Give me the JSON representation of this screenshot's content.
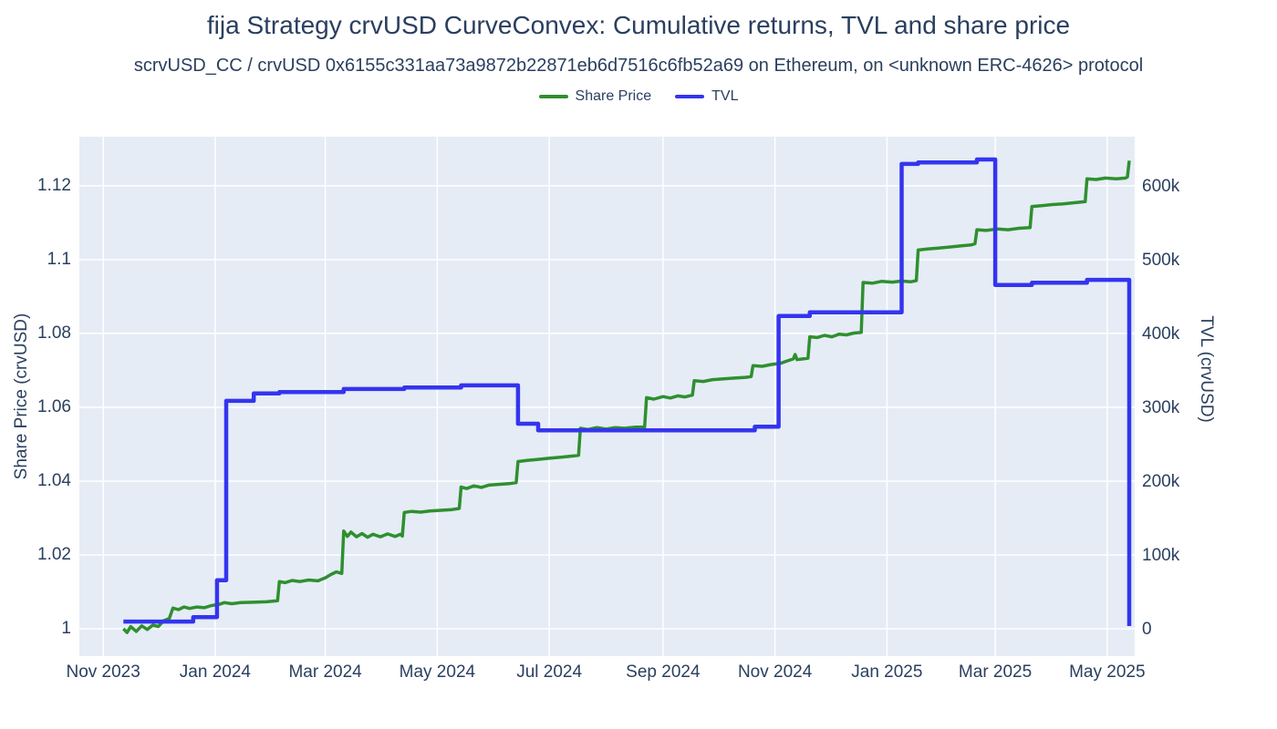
{
  "page": {
    "title": "fija Strategy crvUSD CurveConvex: Cumulative returns, TVL and share price",
    "subtitle": "scrvUSD_CC / crvUSD 0x6155c331aa73a9872b22871eb6d7516c6fb52a69 on Ethereum, on <unknown ERC-4626> protocol"
  },
  "colors": {
    "text": "#2a3f5f",
    "plot_background": "#e5ecf6",
    "gridline": "#ffffff",
    "share_price": "#2f8f2f",
    "tvl": "#3434ef"
  },
  "chart_data": {
    "type": "line",
    "title": "fija Strategy crvUSD CurveConvex: Cumulative returns, TVL and share price",
    "subtitle": "scrvUSD_CC / crvUSD 0x6155c331aa73a9872b22871eb6d7516c6fb52a69 on Ethereum, on <unknown ERC-4626> protocol",
    "grid": true,
    "legend_position": "top-center",
    "plot_bg": "#e5ecf6",
    "grid_color": "#ffffff",
    "x_axis": {
      "range": [
        "2023-10-19",
        "2025-05-16"
      ],
      "ticks": [
        {
          "label": "Nov 2023",
          "date": "2023-11-01"
        },
        {
          "label": "Jan 2024",
          "date": "2024-01-01"
        },
        {
          "label": "Mar 2024",
          "date": "2024-03-01"
        },
        {
          "label": "May 2024",
          "date": "2024-05-01"
        },
        {
          "label": "Jul 2024",
          "date": "2024-07-01"
        },
        {
          "label": "Sep 2024",
          "date": "2024-09-01"
        },
        {
          "label": "Nov 2024",
          "date": "2024-11-01"
        },
        {
          "label": "Jan 2025",
          "date": "2025-01-01"
        },
        {
          "label": "Mar 2025",
          "date": "2025-03-01"
        },
        {
          "label": "May 2025",
          "date": "2025-05-01"
        }
      ]
    },
    "y_left": {
      "title": "Share Price (crvUSD)",
      "range": [
        0.9926,
        1.1333
      ],
      "tick_values": [
        1,
        1.02,
        1.04,
        1.06,
        1.08,
        1.1,
        1.12
      ],
      "tick_labels": [
        "1",
        "1.02",
        "1.04",
        "1.06",
        "1.08",
        "1.1",
        "1.12"
      ]
    },
    "y_right": {
      "title": "TVL (crvUSD)",
      "range": [
        -35800,
        667900
      ],
      "tick_values": [
        0,
        100000,
        200000,
        300000,
        400000,
        500000,
        600000
      ],
      "tick_labels": [
        "0",
        "100k",
        "200k",
        "300k",
        "400k",
        "500k",
        "600k"
      ]
    },
    "series": [
      {
        "name": "Share Price",
        "color": "#2f8f2f",
        "axis": "left",
        "width": 3.5,
        "points": [
          [
            "2023-11-12",
            1.0
          ],
          [
            "2023-11-14",
            0.999
          ],
          [
            "2023-11-16",
            1.0006
          ],
          [
            "2023-11-19",
            0.9993
          ],
          [
            "2023-11-22",
            1.0008
          ],
          [
            "2023-11-25",
            0.9998
          ],
          [
            "2023-11-28",
            1.001
          ],
          [
            "2023-12-01",
            1.0006
          ],
          [
            "2023-12-04",
            1.0022
          ],
          [
            "2023-12-07",
            1.0028
          ],
          [
            "2023-12-09",
            1.0056
          ],
          [
            "2023-12-12",
            1.0052
          ],
          [
            "2023-12-15",
            1.0059
          ],
          [
            "2023-12-18",
            1.0055
          ],
          [
            "2023-12-22",
            1.0059
          ],
          [
            "2023-12-26",
            1.0057
          ],
          [
            "2023-12-30",
            1.0063
          ],
          [
            "2024-01-03",
            1.0066
          ],
          [
            "2024-01-06",
            1.0071
          ],
          [
            "2024-01-10",
            1.0068
          ],
          [
            "2024-01-15",
            1.0071
          ],
          [
            "2024-01-22",
            1.0072
          ],
          [
            "2024-01-29",
            1.0073
          ],
          [
            "2024-02-04",
            1.0076
          ],
          [
            "2024-02-05",
            1.0128
          ],
          [
            "2024-02-08",
            1.0125
          ],
          [
            "2024-02-12",
            1.0131
          ],
          [
            "2024-02-16",
            1.0128
          ],
          [
            "2024-02-21",
            1.0132
          ],
          [
            "2024-02-26",
            1.013
          ],
          [
            "2024-03-01",
            1.0138
          ],
          [
            "2024-03-04",
            1.0147
          ],
          [
            "2024-03-07",
            1.0154
          ],
          [
            "2024-03-10",
            1.015
          ],
          [
            "2024-03-11",
            1.0265
          ],
          [
            "2024-03-13",
            1.025
          ],
          [
            "2024-03-15",
            1.0262
          ],
          [
            "2024-03-18",
            1.0249
          ],
          [
            "2024-03-21",
            1.0258
          ],
          [
            "2024-03-24",
            1.0248
          ],
          [
            "2024-03-27",
            1.0256
          ],
          [
            "2024-03-31",
            1.0249
          ],
          [
            "2024-04-04",
            1.0257
          ],
          [
            "2024-04-08",
            1.025
          ],
          [
            "2024-04-11",
            1.0256
          ],
          [
            "2024-04-12",
            1.0251
          ],
          [
            "2024-04-13",
            1.0315
          ],
          [
            "2024-04-17",
            1.0318
          ],
          [
            "2024-04-22",
            1.0316
          ],
          [
            "2024-04-27",
            1.0319
          ],
          [
            "2024-05-03",
            1.0321
          ],
          [
            "2024-05-09",
            1.0323
          ],
          [
            "2024-05-13",
            1.0326
          ],
          [
            "2024-05-14",
            1.0384
          ],
          [
            "2024-05-17",
            1.038
          ],
          [
            "2024-05-21",
            1.0387
          ],
          [
            "2024-05-25",
            1.0383
          ],
          [
            "2024-05-29",
            1.0389
          ],
          [
            "2024-06-03",
            1.0391
          ],
          [
            "2024-06-09",
            1.0393
          ],
          [
            "2024-06-13",
            1.0396
          ],
          [
            "2024-06-14",
            1.0453
          ],
          [
            "2024-06-19",
            1.0456
          ],
          [
            "2024-06-25",
            1.0459
          ],
          [
            "2024-07-01",
            1.0462
          ],
          [
            "2024-07-08",
            1.0465
          ],
          [
            "2024-07-14",
            1.0468
          ],
          [
            "2024-07-17",
            1.047
          ],
          [
            "2024-07-18",
            1.0543
          ],
          [
            "2024-07-22",
            1.054
          ],
          [
            "2024-07-27",
            1.0545
          ],
          [
            "2024-08-01",
            1.0541
          ],
          [
            "2024-08-06",
            1.0545
          ],
          [
            "2024-08-11",
            1.0543
          ],
          [
            "2024-08-17",
            1.0546
          ],
          [
            "2024-08-22",
            1.0546
          ],
          [
            "2024-08-23",
            1.0626
          ],
          [
            "2024-08-27",
            1.0622
          ],
          [
            "2024-09-01",
            1.0629
          ],
          [
            "2024-09-05",
            1.0625
          ],
          [
            "2024-09-09",
            1.0631
          ],
          [
            "2024-09-13",
            1.0628
          ],
          [
            "2024-09-17",
            1.0633
          ],
          [
            "2024-09-18",
            1.0672
          ],
          [
            "2024-09-23",
            1.067
          ],
          [
            "2024-09-28",
            1.0675
          ],
          [
            "2024-10-04",
            1.0677
          ],
          [
            "2024-10-10",
            1.0679
          ],
          [
            "2024-10-16",
            1.0681
          ],
          [
            "2024-10-19",
            1.0683
          ],
          [
            "2024-10-20",
            1.0713
          ],
          [
            "2024-10-25",
            1.0711
          ],
          [
            "2024-10-30",
            1.0716
          ],
          [
            "2024-11-04",
            1.0719
          ],
          [
            "2024-11-08",
            1.0726
          ],
          [
            "2024-11-11",
            1.0731
          ],
          [
            "2024-11-12",
            1.0743
          ],
          [
            "2024-11-13",
            1.0729
          ],
          [
            "2024-11-16",
            1.0731
          ],
          [
            "2024-11-19",
            1.0733
          ],
          [
            "2024-11-20",
            1.0791
          ],
          [
            "2024-11-24",
            1.0789
          ],
          [
            "2024-11-28",
            1.0795
          ],
          [
            "2024-12-02",
            1.0791
          ],
          [
            "2024-12-06",
            1.0798
          ],
          [
            "2024-12-10",
            1.0796
          ],
          [
            "2024-12-14",
            1.0801
          ],
          [
            "2024-12-18",
            1.0803
          ],
          [
            "2024-12-19",
            1.0938
          ],
          [
            "2024-12-24",
            1.0936
          ],
          [
            "2024-12-29",
            1.0941
          ],
          [
            "2025-01-04",
            1.0939
          ],
          [
            "2025-01-09",
            1.0942
          ],
          [
            "2025-01-14",
            1.094
          ],
          [
            "2025-01-17",
            1.0943
          ],
          [
            "2025-01-18",
            1.1026
          ],
          [
            "2025-01-23",
            1.1029
          ],
          [
            "2025-01-29",
            1.1031
          ],
          [
            "2025-02-04",
            1.1034
          ],
          [
            "2025-02-10",
            1.1037
          ],
          [
            "2025-02-16",
            1.104
          ],
          [
            "2025-02-18",
            1.1043
          ],
          [
            "2025-02-19",
            1.1081
          ],
          [
            "2025-02-24",
            1.1079
          ],
          [
            "2025-03-02",
            1.1083
          ],
          [
            "2025-03-08",
            1.1081
          ],
          [
            "2025-03-14",
            1.1085
          ],
          [
            "2025-03-20",
            1.1087
          ],
          [
            "2025-03-21",
            1.1144
          ],
          [
            "2025-03-26",
            1.1146
          ],
          [
            "2025-04-01",
            1.1149
          ],
          [
            "2025-04-07",
            1.1151
          ],
          [
            "2025-04-13",
            1.1154
          ],
          [
            "2025-04-19",
            1.1157
          ],
          [
            "2025-04-20",
            1.1219
          ],
          [
            "2025-04-25",
            1.1217
          ],
          [
            "2025-04-30",
            1.1221
          ],
          [
            "2025-05-06",
            1.1219
          ],
          [
            "2025-05-11",
            1.1221
          ],
          [
            "2025-05-12",
            1.1224
          ],
          [
            "2025-05-13",
            1.1268
          ]
        ]
      },
      {
        "name": "TVL",
        "color": "#3434ef",
        "axis": "right",
        "width": 4.5,
        "points": [
          [
            "2023-11-12",
            11000
          ],
          [
            "2023-12-20",
            11000
          ],
          [
            "2023-12-20",
            17000
          ],
          [
            "2024-01-02",
            17000
          ],
          [
            "2024-01-02",
            67000
          ],
          [
            "2024-01-07",
            67000
          ],
          [
            "2024-01-07",
            310000
          ],
          [
            "2024-01-22",
            310000
          ],
          [
            "2024-01-22",
            320000
          ],
          [
            "2024-02-05",
            320000
          ],
          [
            "2024-02-05",
            322000
          ],
          [
            "2024-03-11",
            322000
          ],
          [
            "2024-03-11",
            326000
          ],
          [
            "2024-04-13",
            326000
          ],
          [
            "2024-04-13",
            328000
          ],
          [
            "2024-05-14",
            328000
          ],
          [
            "2024-05-14",
            331000
          ],
          [
            "2024-06-14",
            331000
          ],
          [
            "2024-06-14",
            279000
          ],
          [
            "2024-06-25",
            279000
          ],
          [
            "2024-06-25",
            270000
          ],
          [
            "2024-10-21",
            270000
          ],
          [
            "2024-10-21",
            275000
          ],
          [
            "2024-11-03",
            275000
          ],
          [
            "2024-11-03",
            425000
          ],
          [
            "2024-11-20",
            425000
          ],
          [
            "2024-11-20",
            430000
          ],
          [
            "2025-01-09",
            430000
          ],
          [
            "2025-01-09",
            631000
          ],
          [
            "2025-01-18",
            631000
          ],
          [
            "2025-01-18",
            633000
          ],
          [
            "2025-02-19",
            633000
          ],
          [
            "2025-02-19",
            637000
          ],
          [
            "2025-03-01",
            637000
          ],
          [
            "2025-03-01",
            467000
          ],
          [
            "2025-03-21",
            467000
          ],
          [
            "2025-03-21",
            470000
          ],
          [
            "2025-04-20",
            470000
          ],
          [
            "2025-04-20",
            474000
          ],
          [
            "2025-05-13",
            474000
          ],
          [
            "2025-05-13",
            5000
          ]
        ]
      }
    ]
  }
}
